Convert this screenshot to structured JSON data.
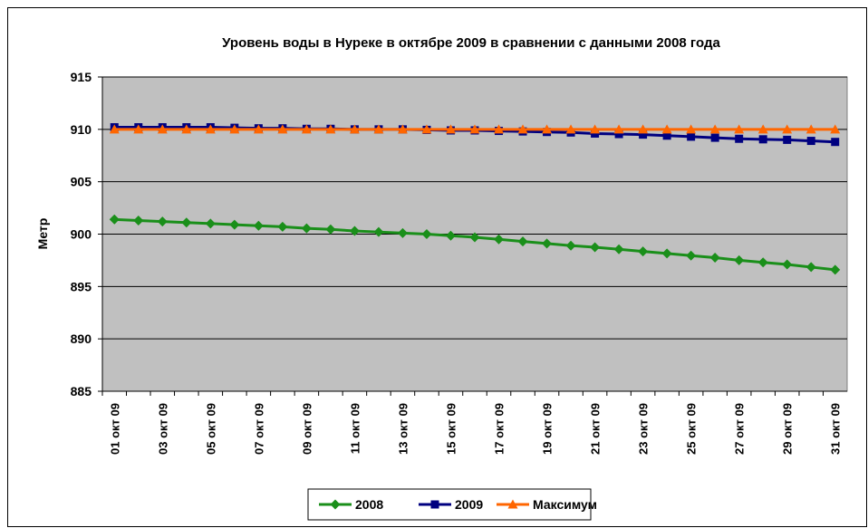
{
  "chart_data": {
    "type": "line",
    "title": "Уровень воды в Нуреке в октябре 2009 в сравнении с данными 2008 года",
    "y_label": "Метр",
    "categories": [
      "01 окт 09",
      null,
      "03 окт 09",
      null,
      "05 окт 09",
      null,
      "07 окт 09",
      null,
      "09 окт 09",
      null,
      "11 окт 09",
      null,
      "13 окт 09",
      null,
      "15 окт 09",
      null,
      "17 окт 09",
      null,
      "19 окт 09",
      null,
      "21 окт 09",
      null,
      "23 окт 09",
      null,
      "25 окт 09",
      null,
      "27 окт 09",
      null,
      "29 окт 09",
      null,
      "31 окт 09"
    ],
    "series": [
      {
        "name": "2008",
        "color": "#1a8f1a",
        "marker": "diamond",
        "values": [
          901.4,
          901.3,
          901.2,
          901.1,
          901.0,
          900.9,
          900.8,
          900.7,
          900.55,
          900.45,
          900.3,
          900.2,
          900.1,
          900.0,
          899.85,
          899.7,
          899.5,
          899.3,
          899.1,
          898.9,
          898.75,
          898.55,
          898.35,
          898.15,
          897.95,
          897.75,
          897.5,
          897.3,
          897.1,
          896.85,
          896.6
        ]
      },
      {
        "name": "2009",
        "color": "#000080",
        "marker": "square",
        "values": [
          910.2,
          910.2,
          910.2,
          910.2,
          910.2,
          910.15,
          910.1,
          910.1,
          910.05,
          910.05,
          910.0,
          910.0,
          910.0,
          909.95,
          909.9,
          909.9,
          909.85,
          909.8,
          909.75,
          909.7,
          909.6,
          909.55,
          909.5,
          909.4,
          909.3,
          909.2,
          909.1,
          909.05,
          909.0,
          908.9,
          908.8
        ]
      },
      {
        "name": "Максимум",
        "color": "#ff6600",
        "marker": "triangle",
        "values": [
          910,
          910,
          910,
          910,
          910,
          910,
          910,
          910,
          910,
          910,
          910,
          910,
          910,
          910,
          910,
          910,
          910,
          910,
          910,
          910,
          910,
          910,
          910,
          910,
          910,
          910,
          910,
          910,
          910,
          910,
          910
        ]
      }
    ],
    "ylim": [
      885,
      915
    ],
    "yticks": [
      885,
      890,
      895,
      900,
      905,
      910,
      915
    ],
    "grid": true,
    "legend": "bottom"
  }
}
